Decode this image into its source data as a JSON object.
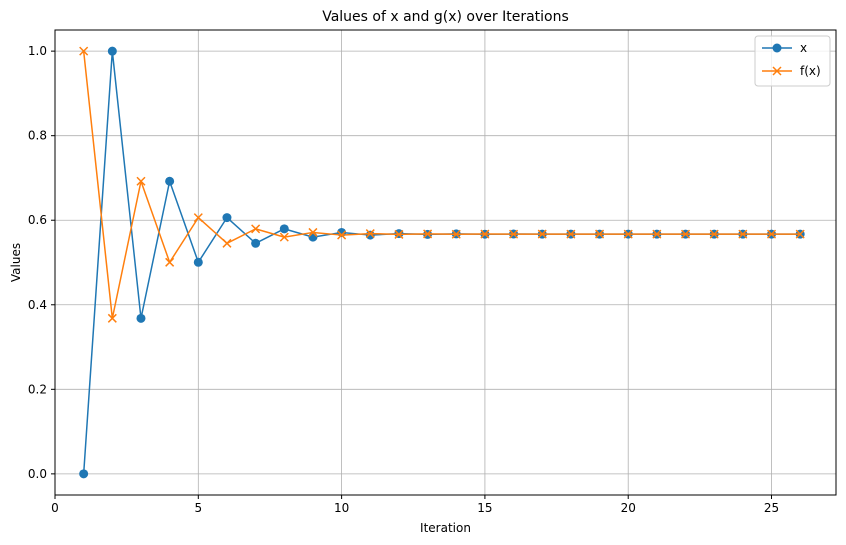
{
  "chart_data": {
    "type": "line",
    "title": "Values of x and g(x) over Iterations",
    "xlabel": "Iteration",
    "ylabel": "Values",
    "xlim": [
      0,
      27.25
    ],
    "ylim": [
      -0.05,
      1.05
    ],
    "xticks": [
      0,
      5,
      10,
      15,
      20,
      25
    ],
    "yticks": [
      0.0,
      0.2,
      0.4,
      0.6,
      0.8,
      1.0
    ],
    "xtick_labels": [
      "0",
      "5",
      "10",
      "15",
      "20",
      "25"
    ],
    "ytick_labels": [
      "0.0",
      "0.2",
      "0.4",
      "0.6",
      "0.8",
      "1.0"
    ],
    "grid": true,
    "legend_position": "top-right",
    "x": [
      1,
      2,
      3,
      4,
      5,
      6,
      7,
      8,
      9,
      10,
      11,
      12,
      13,
      14,
      15,
      16,
      17,
      18,
      19,
      20,
      21,
      22,
      23,
      24,
      25,
      26
    ],
    "series": [
      {
        "name": "x",
        "color": "#1f77b4",
        "marker": "circle",
        "values": [
          0.0,
          1.0,
          0.3679,
          0.6922,
          0.5005,
          0.6062,
          0.5454,
          0.5796,
          0.5601,
          0.5711,
          0.5649,
          0.5684,
          0.5664,
          0.5676,
          0.5669,
          0.5673,
          0.5671,
          0.5672,
          0.5671,
          0.5672,
          0.5671,
          0.5671,
          0.5671,
          0.5671,
          0.5671,
          0.5671
        ]
      },
      {
        "name": "f(x)",
        "color": "#ff7f0e",
        "marker": "x",
        "values": [
          1.0,
          0.3679,
          0.6922,
          0.5005,
          0.6062,
          0.5454,
          0.5796,
          0.5601,
          0.5711,
          0.5649,
          0.5684,
          0.5664,
          0.5676,
          0.5669,
          0.5673,
          0.5671,
          0.5672,
          0.5671,
          0.5672,
          0.5671,
          0.5671,
          0.5671,
          0.5671,
          0.5671,
          0.5671,
          0.5671
        ]
      }
    ]
  }
}
